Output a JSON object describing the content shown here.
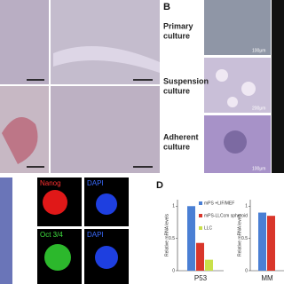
{
  "panel_labels": {
    "b": "B",
    "d": "D"
  },
  "culture_labels": [
    [
      "Primary",
      "culture"
    ],
    [
      "Suspension",
      "culture"
    ],
    [
      "Adherent",
      "culture"
    ]
  ],
  "scale_bars": [
    "100μm",
    "200μm",
    "100μm"
  ],
  "stain_labels": [
    [
      "Nanog",
      "DAPI"
    ],
    [
      "Oct 3/4",
      "DAPI"
    ]
  ],
  "chart_data": [
    {
      "type": "bar",
      "y_label": "Relative mRNA levels",
      "categories": [
        "P53"
      ],
      "ylim": [
        0,
        1.1
      ],
      "yticks": [
        0,
        0.5,
        1
      ],
      "series": [
        {
          "name": "mPS +LIF/MEF",
          "color": "#4a7fd4",
          "values": [
            1
          ]
        },
        {
          "name": "mPS-LLCcm spheroid",
          "color": "#d9362b",
          "values": [
            0.43
          ]
        },
        {
          "name": "LLC",
          "color": "#c9e04a",
          "values": [
            0.17
          ]
        }
      ]
    },
    {
      "type": "bar",
      "y_label": "Relative mRNA levels",
      "categories": [
        "MM"
      ],
      "ylim": [
        0,
        1.1
      ],
      "yticks": [
        0,
        0.5,
        1
      ],
      "series": [
        {
          "color": "#4a7fd4",
          "values": [
            0.9
          ]
        },
        {
          "color": "#d9362b",
          "values": [
            0.85
          ]
        }
      ]
    }
  ]
}
